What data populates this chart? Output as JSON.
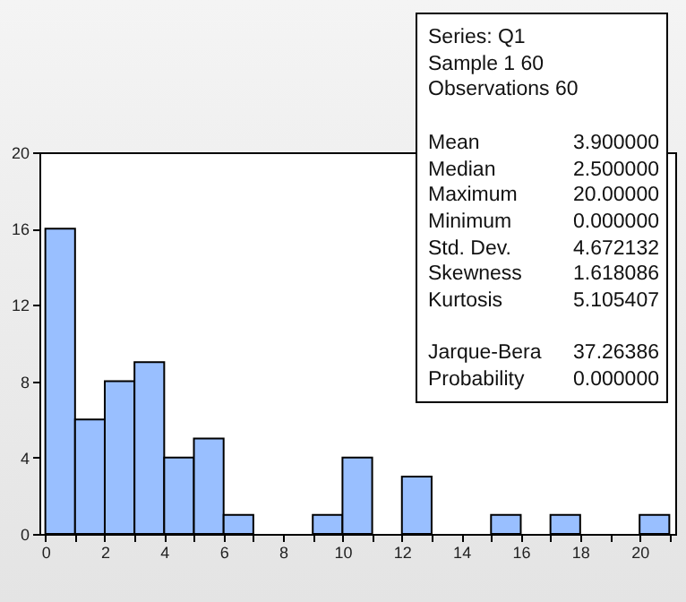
{
  "chart_data": {
    "type": "histogram",
    "bins": [
      0,
      1,
      2,
      3,
      4,
      5,
      6,
      7,
      8,
      9,
      10,
      11,
      12,
      13,
      14,
      15,
      16,
      17,
      18,
      19,
      20,
      21
    ],
    "values": [
      16,
      6,
      8,
      9,
      4,
      5,
      1,
      0,
      0,
      1,
      4,
      0,
      3,
      0,
      0,
      1,
      0,
      1,
      0,
      0,
      1
    ],
    "color": "#99bfff",
    "xlim": [
      -0.2,
      21.2
    ],
    "xticks": [
      0,
      {
        "value": 1,
        "label": null
      },
      2,
      {
        "value": 3,
        "label": null
      },
      4,
      {
        "value": 5,
        "label": null
      },
      6,
      {
        "value": 7,
        "label": null
      },
      8,
      {
        "value": 9,
        "label": null
      },
      10,
      {
        "value": 11,
        "label": null
      },
      12,
      {
        "value": 13,
        "label": null
      },
      14,
      {
        "value": 15,
        "label": null
      },
      16,
      {
        "value": 17,
        "label": null
      },
      18,
      {
        "value": 19,
        "label": null
      },
      20,
      {
        "value": 21,
        "label": null
      }
    ],
    "ylim": [
      0,
      20
    ],
    "yticks": [
      0,
      4,
      8,
      12,
      16,
      20
    ],
    "annotations": [
      "Series: Q1",
      "Sample 1 60",
      "Observations 60",
      "Mean",
      "3.900000",
      "Median",
      "2.500000",
      "Maximum",
      "20.00000",
      "Minimum",
      "0.000000",
      "Std. Dev.",
      "4.672132",
      "Skewness",
      "1.618086",
      "Kurtosis",
      "5.105407",
      "Jarque-Bera",
      "37.26386",
      "Probability",
      "0.000000"
    ]
  }
}
